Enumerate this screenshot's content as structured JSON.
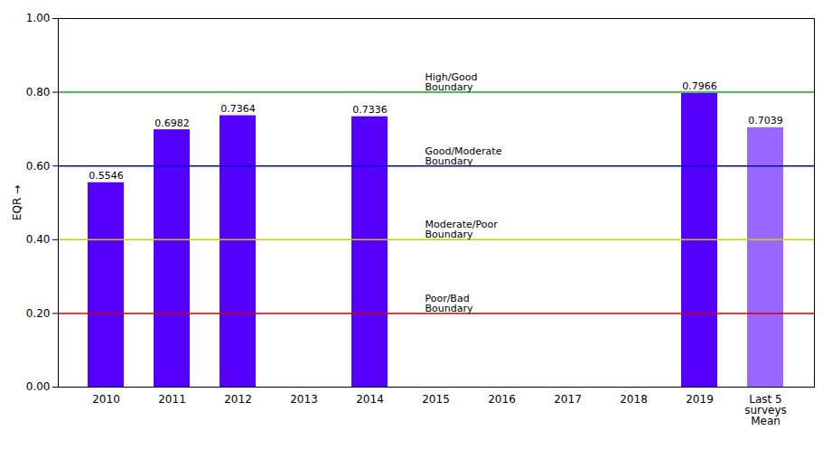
{
  "chart_data": {
    "type": "bar",
    "categories": [
      "2010",
      "2011",
      "2012",
      "2013",
      "2014",
      "2015",
      "2016",
      "2017",
      "2018",
      "2019",
      "Last 5\nsurveys\nMean"
    ],
    "values": [
      0.5546,
      0.6982,
      0.7364,
      null,
      0.7336,
      null,
      null,
      null,
      null,
      0.7966,
      0.7039
    ],
    "colors": [
      "#5500ff",
      "#5500ff",
      "#5500ff",
      null,
      "#5500ff",
      null,
      null,
      null,
      null,
      "#5500ff",
      "#9966ff"
    ],
    "ylabel": "EQR",
    "ylim": [
      0.0,
      1.0
    ],
    "yticks": [
      {
        "value": 0.0,
        "label": "0.00"
      },
      {
        "value": 0.2,
        "label": "0.20"
      },
      {
        "value": 0.4,
        "label": "0.40"
      },
      {
        "value": 0.6,
        "label": "0.60"
      },
      {
        "value": 0.8,
        "label": "0.80"
      },
      {
        "value": 1.0,
        "label": "1.00"
      }
    ],
    "data_labels": true,
    "grid": false,
    "reference_lines": [
      {
        "y": 0.8,
        "color": "#00bb00",
        "label": "High/Good\nBoundary"
      },
      {
        "y": 0.6,
        "color": "#0000cc",
        "label": "Good/Moderate\nBoundary"
      },
      {
        "y": 0.4,
        "color": "#cccc00",
        "label": "Moderate/Poor\nBoundary"
      },
      {
        "y": 0.2,
        "color": "#cc0000",
        "label": "Poor/Bad\nBoundary"
      }
    ]
  }
}
